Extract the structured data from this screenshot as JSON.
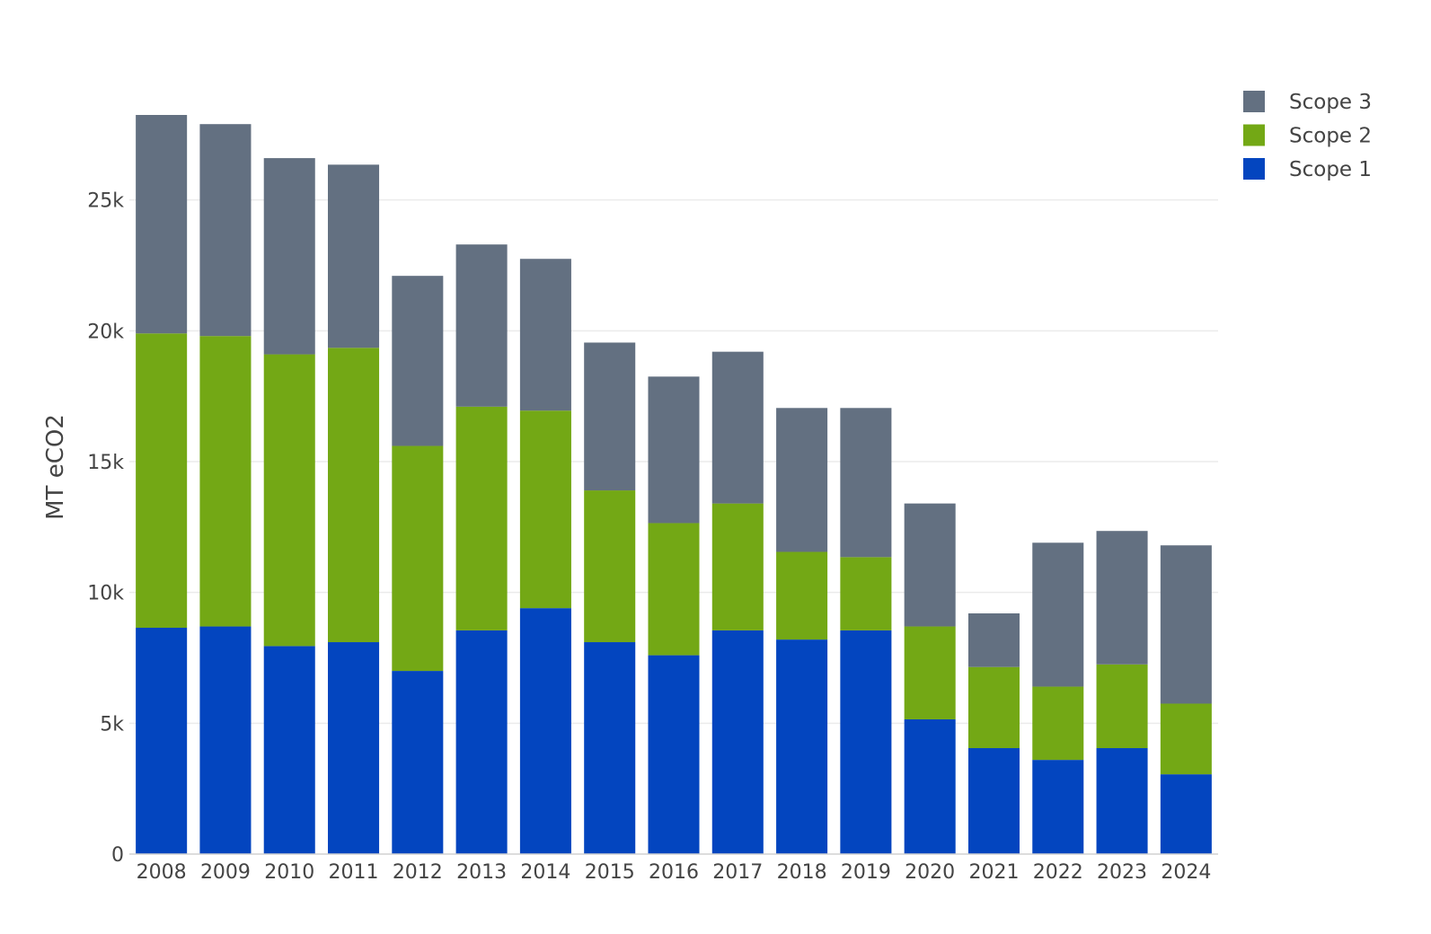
{
  "chart_data": {
    "type": "bar",
    "stacked": true,
    "categories": [
      "2008",
      "2009",
      "2010",
      "2011",
      "2012",
      "2013",
      "2014",
      "2015",
      "2016",
      "2017",
      "2018",
      "2019",
      "2020",
      "2021",
      "2022",
      "2023",
      "2024"
    ],
    "series": [
      {
        "name": "Scope 1",
        "color": "#0345bf",
        "values": [
          8650,
          8700,
          7950,
          8100,
          7000,
          8550,
          9400,
          8100,
          7600,
          8550,
          8200,
          8550,
          5150,
          4050,
          3600,
          4050,
          3050
        ]
      },
      {
        "name": "Scope 2",
        "color": "#73a815",
        "values": [
          11250,
          11100,
          11150,
          11250,
          8600,
          8550,
          7550,
          5800,
          5050,
          4850,
          3350,
          2800,
          3550,
          3100,
          2800,
          3200,
          2700
        ]
      },
      {
        "name": "Scope 3",
        "color": "#637081",
        "values": [
          8350,
          8100,
          7500,
          7000,
          6500,
          6200,
          5800,
          5650,
          5600,
          5800,
          5500,
          5700,
          4700,
          2050,
          5500,
          5100,
          6050
        ]
      }
    ],
    "xlabel": "",
    "ylabel": "MT eCO2",
    "ylim": [
      0,
      28250
    ],
    "yticks": [
      0,
      5000,
      10000,
      15000,
      20000,
      25000
    ],
    "ytick_labels": [
      "0",
      "5k",
      "10k",
      "15k",
      "20k",
      "25k"
    ],
    "grid": "horizontal",
    "legend": {
      "position": "top-right",
      "order": [
        "Scope 3",
        "Scope 2",
        "Scope 1"
      ]
    }
  }
}
